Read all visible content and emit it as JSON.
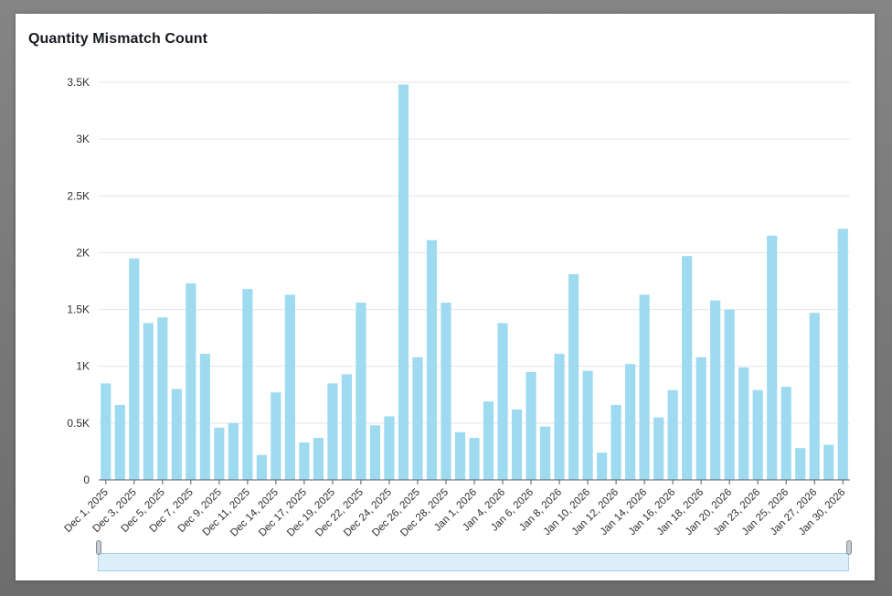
{
  "chart_data": {
    "type": "bar",
    "title": "Quantity Mismatch Count",
    "xlabel": "",
    "ylabel": "",
    "ylim": [
      0,
      3500
    ],
    "y_ticks": [
      {
        "value": 0,
        "label": "0"
      },
      {
        "value": 500,
        "label": "0.5K"
      },
      {
        "value": 1000,
        "label": "1K"
      },
      {
        "value": 1500,
        "label": "1.5K"
      },
      {
        "value": 2000,
        "label": "2K"
      },
      {
        "value": 2500,
        "label": "2.5K"
      },
      {
        "value": 3000,
        "label": "3K"
      },
      {
        "value": 3500,
        "label": "3.5K"
      }
    ],
    "x_tick_labels": [
      "Dec 1, 2025",
      "Dec 3, 2025",
      "Dec 5, 2025",
      "Dec 7, 2025",
      "Dec 9, 2025",
      "Dec 11, 2025",
      "Dec 14, 2025",
      "Dec 17, 2025",
      "Dec 19, 2025",
      "Dec 22, 2025",
      "Dec 24, 2025",
      "Dec 26, 2025",
      "Dec 28, 2025",
      "Jan 1, 2026",
      "Jan 4, 2026",
      "Jan 6, 2026",
      "Jan 8, 2026",
      "Jan 10, 2026",
      "Jan 12, 2026",
      "Jan 14, 2026",
      "Jan 16, 2026",
      "Jan 18, 2026",
      "Jan 20, 2026",
      "Jan 23, 2026",
      "Jan 25, 2026",
      "Jan 27, 2026",
      "Jan 30, 2026"
    ],
    "values": [
      850,
      660,
      1950,
      1380,
      1430,
      800,
      1730,
      1110,
      460,
      500,
      1680,
      220,
      770,
      1630,
      330,
      370,
      850,
      930,
      1560,
      480,
      560,
      3480,
      1080,
      2110,
      1560,
      420,
      370,
      690,
      1380,
      620,
      950,
      470,
      1110,
      1810,
      960,
      240,
      660,
      1020,
      1630,
      550,
      790,
      1970,
      1080,
      1580,
      1500,
      990,
      790,
      2150,
      820,
      280,
      1470,
      310,
      2210
    ],
    "bar_color": "#9edaf0",
    "grid": true,
    "legend": "none"
  }
}
